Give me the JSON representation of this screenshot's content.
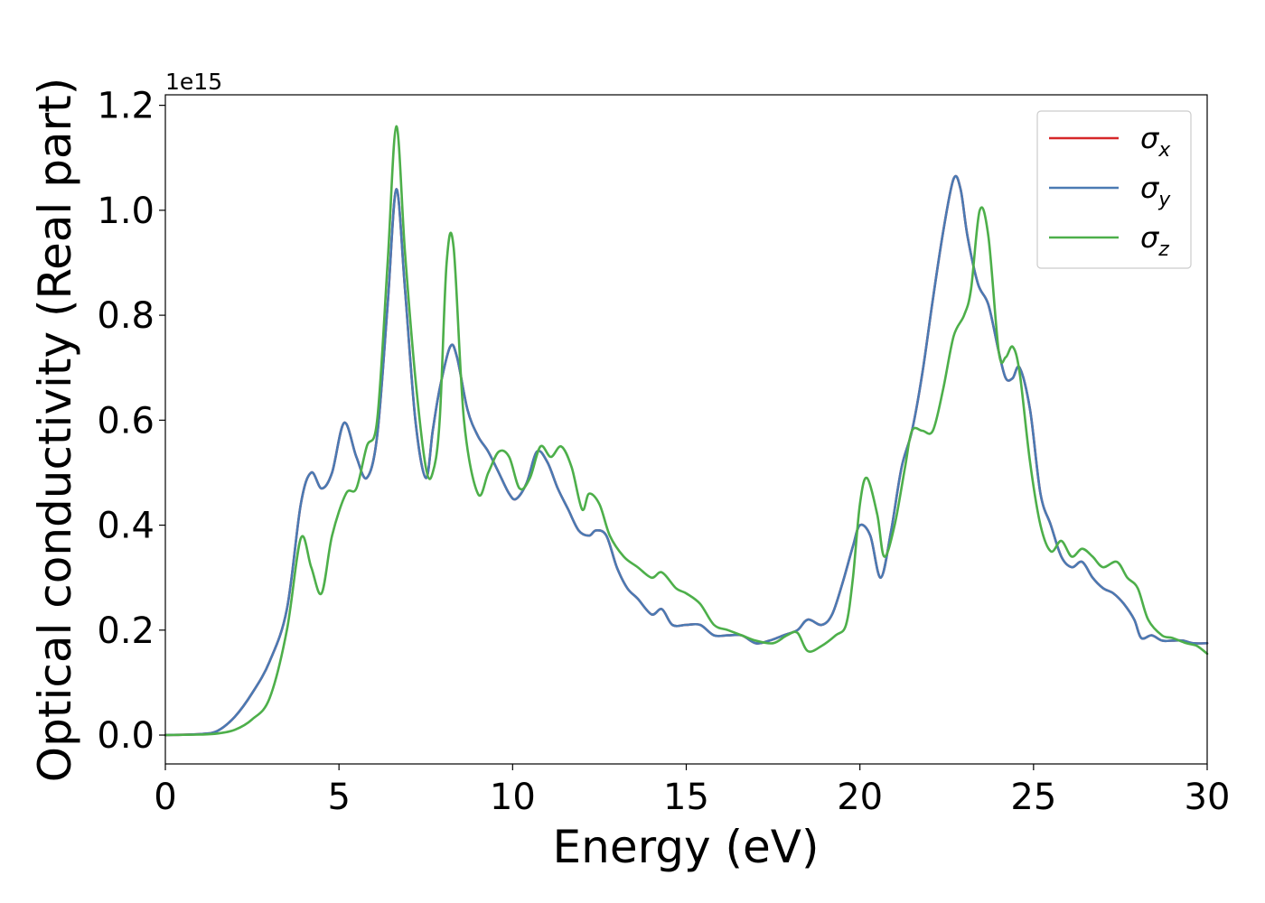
{
  "chart_data": {
    "type": "line",
    "xlabel": "Energy (eV)",
    "ylabel": "Optical conductivity (Real part)",
    "offset_label": "1e15",
    "xlim": [
      0,
      30
    ],
    "ylim": [
      -0.055,
      1.22
    ],
    "x_ticks": [
      0,
      5,
      10,
      15,
      20,
      25,
      30
    ],
    "x_tick_labels": [
      "0",
      "5",
      "10",
      "15",
      "20",
      "25",
      "30"
    ],
    "y_ticks": [
      0.0,
      0.2,
      0.4,
      0.6,
      0.8,
      1.0,
      1.2
    ],
    "y_tick_labels": [
      "0.0",
      "0.2",
      "0.4",
      "0.6",
      "0.8",
      "1.0",
      "1.2"
    ],
    "grid": false,
    "legend_position": "top-right",
    "series": [
      {
        "name": "σx",
        "legend_base": "σ",
        "legend_sub": "x",
        "color": "#d62728",
        "x": [
          0,
          1,
          1.5,
          2,
          2.5,
          3,
          3.5,
          3.9,
          4.2,
          4.5,
          4.8,
          5.15,
          5.5,
          5.8,
          6.1,
          6.4,
          6.65,
          6.9,
          7.2,
          7.5,
          7.7,
          7.9,
          8.2,
          8.4,
          8.7,
          9.0,
          9.3,
          9.6,
          9.9,
          10.1,
          10.4,
          10.7,
          11.0,
          11.3,
          11.6,
          11.9,
          12.2,
          12.4,
          12.7,
          13.0,
          13.3,
          13.6,
          14.0,
          14.3,
          14.6,
          15.0,
          15.4,
          15.8,
          16.2,
          16.6,
          17.0,
          17.4,
          17.8,
          18.2,
          18.5,
          18.9,
          19.2,
          19.5,
          19.8,
          20.0,
          20.3,
          20.6,
          20.9,
          21.2,
          21.5,
          21.8,
          22.1,
          22.4,
          22.7,
          22.9,
          23.1,
          23.4,
          23.7,
          24.0,
          24.2,
          24.4,
          24.6,
          24.9,
          25.2,
          25.5,
          25.8,
          26.1,
          26.4,
          26.7,
          27.0,
          27.3,
          27.6,
          27.9,
          28.1,
          28.4,
          28.7,
          29.0,
          29.3,
          29.6,
          30.0
        ],
        "y": [
          0.0,
          0.002,
          0.008,
          0.035,
          0.08,
          0.14,
          0.24,
          0.44,
          0.5,
          0.47,
          0.5,
          0.595,
          0.53,
          0.49,
          0.57,
          0.82,
          1.04,
          0.85,
          0.6,
          0.49,
          0.58,
          0.66,
          0.74,
          0.72,
          0.62,
          0.57,
          0.54,
          0.5,
          0.46,
          0.45,
          0.48,
          0.54,
          0.52,
          0.47,
          0.43,
          0.39,
          0.38,
          0.39,
          0.38,
          0.32,
          0.28,
          0.26,
          0.23,
          0.24,
          0.21,
          0.21,
          0.21,
          0.19,
          0.19,
          0.19,
          0.175,
          0.18,
          0.19,
          0.2,
          0.22,
          0.21,
          0.23,
          0.29,
          0.36,
          0.4,
          0.38,
          0.3,
          0.39,
          0.51,
          0.58,
          0.69,
          0.83,
          0.96,
          1.06,
          1.04,
          0.95,
          0.86,
          0.82,
          0.73,
          0.68,
          0.68,
          0.7,
          0.62,
          0.46,
          0.4,
          0.34,
          0.32,
          0.33,
          0.3,
          0.28,
          0.27,
          0.25,
          0.22,
          0.185,
          0.19,
          0.18,
          0.18,
          0.18,
          0.175,
          0.175
        ]
      },
      {
        "name": "σy",
        "legend_base": "σ",
        "legend_sub": "y",
        "color": "#4a7ab3",
        "x": [
          0,
          1,
          1.5,
          2,
          2.5,
          3,
          3.5,
          3.9,
          4.2,
          4.5,
          4.8,
          5.15,
          5.5,
          5.8,
          6.1,
          6.4,
          6.65,
          6.9,
          7.2,
          7.5,
          7.7,
          7.9,
          8.2,
          8.4,
          8.7,
          9.0,
          9.3,
          9.6,
          9.9,
          10.1,
          10.4,
          10.7,
          11.0,
          11.3,
          11.6,
          11.9,
          12.2,
          12.4,
          12.7,
          13.0,
          13.3,
          13.6,
          14.0,
          14.3,
          14.6,
          15.0,
          15.4,
          15.8,
          16.2,
          16.6,
          17.0,
          17.4,
          17.8,
          18.2,
          18.5,
          18.9,
          19.2,
          19.5,
          19.8,
          20.0,
          20.3,
          20.6,
          20.9,
          21.2,
          21.5,
          21.8,
          22.1,
          22.4,
          22.7,
          22.9,
          23.1,
          23.4,
          23.7,
          24.0,
          24.2,
          24.4,
          24.6,
          24.9,
          25.2,
          25.5,
          25.8,
          26.1,
          26.4,
          26.7,
          27.0,
          27.3,
          27.6,
          27.9,
          28.1,
          28.4,
          28.7,
          29.0,
          29.3,
          29.6,
          30.0
        ],
        "y": [
          0.0,
          0.002,
          0.008,
          0.035,
          0.08,
          0.14,
          0.24,
          0.44,
          0.5,
          0.47,
          0.5,
          0.595,
          0.53,
          0.49,
          0.57,
          0.82,
          1.04,
          0.85,
          0.6,
          0.49,
          0.58,
          0.66,
          0.74,
          0.72,
          0.62,
          0.57,
          0.54,
          0.5,
          0.46,
          0.45,
          0.48,
          0.54,
          0.52,
          0.47,
          0.43,
          0.39,
          0.38,
          0.39,
          0.38,
          0.32,
          0.28,
          0.26,
          0.23,
          0.24,
          0.21,
          0.21,
          0.21,
          0.19,
          0.19,
          0.19,
          0.175,
          0.18,
          0.19,
          0.2,
          0.22,
          0.21,
          0.23,
          0.29,
          0.36,
          0.4,
          0.38,
          0.3,
          0.39,
          0.51,
          0.58,
          0.69,
          0.83,
          0.96,
          1.06,
          1.04,
          0.95,
          0.86,
          0.82,
          0.73,
          0.68,
          0.68,
          0.7,
          0.62,
          0.46,
          0.4,
          0.34,
          0.32,
          0.33,
          0.3,
          0.28,
          0.27,
          0.25,
          0.22,
          0.185,
          0.19,
          0.18,
          0.18,
          0.18,
          0.175,
          0.175
        ]
      },
      {
        "name": "σz",
        "legend_base": "σ",
        "legend_sub": "z",
        "color": "#4daf4a",
        "x": [
          0,
          1,
          1.5,
          2,
          2.5,
          3,
          3.5,
          3.9,
          4.2,
          4.5,
          4.8,
          5.2,
          5.5,
          5.8,
          6.1,
          6.4,
          6.65,
          6.9,
          7.2,
          7.5,
          7.7,
          7.9,
          8.1,
          8.3,
          8.6,
          9.0,
          9.3,
          9.6,
          9.9,
          10.2,
          10.5,
          10.8,
          11.1,
          11.4,
          11.7,
          12.0,
          12.2,
          12.5,
          12.8,
          13.2,
          13.6,
          14.0,
          14.3,
          14.7,
          15.0,
          15.4,
          15.8,
          16.2,
          16.6,
          17.0,
          17.5,
          17.9,
          18.2,
          18.5,
          18.9,
          19.3,
          19.6,
          19.8,
          20.0,
          20.2,
          20.5,
          20.7,
          21.0,
          21.3,
          21.5,
          21.8,
          22.1,
          22.4,
          22.7,
          23.0,
          23.2,
          23.45,
          23.7,
          24.0,
          24.2,
          24.4,
          24.6,
          24.9,
          25.2,
          25.5,
          25.8,
          26.1,
          26.4,
          26.7,
          27.0,
          27.4,
          27.7,
          28.0,
          28.3,
          28.7,
          29.0,
          29.4,
          29.7,
          30.0
        ],
        "y": [
          0.0,
          0.001,
          0.003,
          0.01,
          0.03,
          0.07,
          0.2,
          0.375,
          0.32,
          0.27,
          0.38,
          0.46,
          0.47,
          0.55,
          0.6,
          0.9,
          1.16,
          0.92,
          0.68,
          0.51,
          0.5,
          0.6,
          0.9,
          0.93,
          0.6,
          0.46,
          0.5,
          0.54,
          0.53,
          0.47,
          0.49,
          0.55,
          0.53,
          0.55,
          0.51,
          0.43,
          0.46,
          0.44,
          0.38,
          0.34,
          0.32,
          0.3,
          0.31,
          0.28,
          0.27,
          0.25,
          0.21,
          0.2,
          0.19,
          0.18,
          0.175,
          0.19,
          0.195,
          0.16,
          0.17,
          0.19,
          0.21,
          0.3,
          0.44,
          0.49,
          0.42,
          0.34,
          0.4,
          0.51,
          0.58,
          0.58,
          0.58,
          0.66,
          0.76,
          0.8,
          0.85,
          1.0,
          0.95,
          0.73,
          0.72,
          0.74,
          0.69,
          0.52,
          0.4,
          0.35,
          0.37,
          0.34,
          0.355,
          0.34,
          0.32,
          0.33,
          0.3,
          0.28,
          0.22,
          0.19,
          0.185,
          0.175,
          0.17,
          0.155
        ]
      }
    ]
  }
}
